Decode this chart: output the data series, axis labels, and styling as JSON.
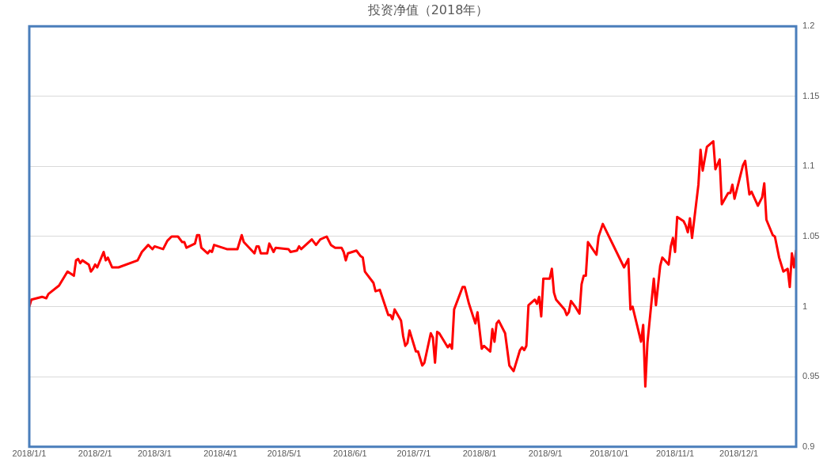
{
  "chart_data": {
    "type": "line",
    "title": "投资净值（2018年）",
    "xlim": [
      "2018-01-01",
      "2018-12-28"
    ],
    "xticks": [
      {
        "value": "2018-01-01",
        "label": "2018/1/1"
      },
      {
        "value": "2018-02-01",
        "label": "2018/2/1"
      },
      {
        "value": "2018-03-01",
        "label": "2018/3/1"
      },
      {
        "value": "2018-04-01",
        "label": "2018/4/1"
      },
      {
        "value": "2018-05-01",
        "label": "2018/5/1"
      },
      {
        "value": "2018-06-01",
        "label": "2018/6/1"
      },
      {
        "value": "2018-07-01",
        "label": "2018/7/1"
      },
      {
        "value": "2018-08-01",
        "label": "2018/8/1"
      },
      {
        "value": "2018-09-01",
        "label": "2018/9/1"
      },
      {
        "value": "2018-10-01",
        "label": "2018/10/1"
      },
      {
        "value": "2018-11-01",
        "label": "2018/11/1"
      },
      {
        "value": "2018-12-01",
        "label": "2018/12/1"
      }
    ],
    "ylim": [
      0.9,
      1.2
    ],
    "yticks": [
      0.9,
      0.95,
      1,
      1.05,
      1.1,
      1.15,
      1.2
    ],
    "grid": "y",
    "legend": false,
    "marker": "none",
    "line_style": "solid",
    "series": [
      {
        "color": "#ff0000",
        "x": [
          "2018-01-01",
          "2018-01-02",
          "2018-01-07",
          "2018-01-09",
          "2018-01-10",
          "2018-01-15",
          "2018-01-19",
          "2018-01-22",
          "2018-01-23",
          "2018-01-24",
          "2018-01-25",
          "2018-01-26",
          "2018-01-29",
          "2018-01-30",
          "2018-01-31",
          "2018-02-01",
          "2018-02-02",
          "2018-02-05",
          "2018-02-06",
          "2018-02-07",
          "2018-02-09",
          "2018-02-12",
          "2018-02-21",
          "2018-02-23",
          "2018-02-26",
          "2018-02-28",
          "2018-03-01",
          "2018-03-05",
          "2018-03-07",
          "2018-03-09",
          "2018-03-12",
          "2018-03-14",
          "2018-03-15",
          "2018-03-16",
          "2018-03-20",
          "2018-03-21",
          "2018-03-22",
          "2018-03-23",
          "2018-03-26",
          "2018-03-27",
          "2018-03-28",
          "2018-03-29",
          "2018-04-02",
          "2018-04-04",
          "2018-04-09",
          "2018-04-11",
          "2018-04-12",
          "2018-04-17",
          "2018-04-18",
          "2018-04-19",
          "2018-04-20",
          "2018-04-23",
          "2018-04-24",
          "2018-04-26",
          "2018-04-27",
          "2018-05-03",
          "2018-05-04",
          "2018-05-07",
          "2018-05-08",
          "2018-05-09",
          "2018-05-14",
          "2018-05-16",
          "2018-05-18",
          "2018-05-21",
          "2018-05-23",
          "2018-05-25",
          "2018-05-28",
          "2018-05-29",
          "2018-05-30",
          "2018-05-31",
          "2018-06-04",
          "2018-06-06",
          "2018-06-07",
          "2018-06-08",
          "2018-06-12",
          "2018-06-13",
          "2018-06-15",
          "2018-06-19",
          "2018-06-20",
          "2018-06-21",
          "2018-06-22",
          "2018-06-25",
          "2018-06-26",
          "2018-06-27",
          "2018-06-28",
          "2018-06-29",
          "2018-07-02",
          "2018-07-03",
          "2018-07-05",
          "2018-07-06",
          "2018-07-09",
          "2018-07-10",
          "2018-07-11",
          "2018-07-12",
          "2018-07-13",
          "2018-07-17",
          "2018-07-18",
          "2018-07-19",
          "2018-07-20",
          "2018-07-24",
          "2018-07-25",
          "2018-07-27",
          "2018-07-30",
          "2018-07-31",
          "2018-08-02",
          "2018-08-03",
          "2018-08-06",
          "2018-08-07",
          "2018-08-08",
          "2018-08-09",
          "2018-08-10",
          "2018-08-13",
          "2018-08-15",
          "2018-08-17",
          "2018-08-20",
          "2018-08-21",
          "2018-08-22",
          "2018-08-23",
          "2018-08-24",
          "2018-08-27",
          "2018-08-28",
          "2018-08-29",
          "2018-08-30",
          "2018-08-31",
          "2018-09-03",
          "2018-09-04",
          "2018-09-05",
          "2018-09-06",
          "2018-09-10",
          "2018-09-11",
          "2018-09-12",
          "2018-09-13",
          "2018-09-15",
          "2018-09-17",
          "2018-09-18",
          "2018-09-19",
          "2018-09-20",
          "2018-09-21",
          "2018-09-25",
          "2018-09-26",
          "2018-09-28",
          "2018-10-08",
          "2018-10-10",
          "2018-10-11",
          "2018-10-12",
          "2018-10-16",
          "2018-10-17",
          "2018-10-18",
          "2018-10-19",
          "2018-10-22",
          "2018-10-23",
          "2018-10-25",
          "2018-10-26",
          "2018-10-29",
          "2018-10-30",
          "2018-10-31",
          "2018-11-01",
          "2018-11-02",
          "2018-11-05",
          "2018-11-06",
          "2018-11-07",
          "2018-11-08",
          "2018-11-09",
          "2018-11-12",
          "2018-11-13",
          "2018-11-14",
          "2018-11-16",
          "2018-11-19",
          "2018-11-20",
          "2018-11-22",
          "2018-11-23",
          "2018-11-26",
          "2018-11-27",
          "2018-11-28",
          "2018-11-29",
          "2018-12-03",
          "2018-12-04",
          "2018-12-06",
          "2018-12-07",
          "2018-12-10",
          "2018-12-12",
          "2018-12-13",
          "2018-12-14",
          "2018-12-17",
          "2018-12-18",
          "2018-12-20",
          "2018-12-22",
          "2018-12-24",
          "2018-12-25",
          "2018-12-26",
          "2018-12-27",
          "2018-12-28"
        ],
        "values": [
          1.0,
          1.005,
          1.007,
          1.006,
          1.009,
          1.015,
          1.025,
          1.022,
          1.033,
          1.034,
          1.031,
          1.033,
          1.03,
          1.025,
          1.027,
          1.03,
          1.028,
          1.039,
          1.033,
          1.035,
          1.028,
          1.028,
          1.033,
          1.039,
          1.044,
          1.041,
          1.043,
          1.041,
          1.047,
          1.05,
          1.05,
          1.046,
          1.046,
          1.042,
          1.045,
          1.051,
          1.051,
          1.042,
          1.038,
          1.04,
          1.039,
          1.044,
          1.042,
          1.041,
          1.041,
          1.051,
          1.046,
          1.038,
          1.043,
          1.043,
          1.038,
          1.038,
          1.045,
          1.039,
          1.042,
          1.041,
          1.039,
          1.04,
          1.043,
          1.041,
          1.048,
          1.044,
          1.048,
          1.05,
          1.044,
          1.042,
          1.042,
          1.039,
          1.033,
          1.038,
          1.04,
          1.036,
          1.035,
          1.025,
          1.017,
          1.011,
          1.012,
          0.994,
          0.994,
          0.991,
          0.998,
          0.99,
          0.979,
          0.972,
          0.974,
          0.983,
          0.968,
          0.968,
          0.958,
          0.96,
          0.981,
          0.978,
          0.96,
          0.982,
          0.981,
          0.971,
          0.973,
          0.97,
          0.998,
          1.014,
          1.014,
          1.002,
          0.988,
          0.996,
          0.97,
          0.972,
          0.968,
          0.984,
          0.975,
          0.988,
          0.99,
          0.981,
          0.958,
          0.954,
          0.969,
          0.971,
          0.969,
          0.972,
          1.001,
          1.005,
          1.002,
          1.007,
          0.993,
          1.02,
          1.02,
          1.027,
          1.01,
          1.005,
          0.998,
          0.994,
          0.996,
          1.004,
          1.0,
          0.995,
          1.016,
          1.022,
          1.022,
          1.046,
          1.037,
          1.05,
          1.059,
          1.028,
          1.034,
          0.998,
          1.0,
          0.975,
          0.987,
          0.943,
          0.974,
          1.02,
          1.001,
          1.029,
          1.035,
          1.03,
          1.043,
          1.049,
          1.039,
          1.064,
          1.061,
          1.058,
          1.053,
          1.063,
          1.049,
          1.087,
          1.112,
          1.097,
          1.114,
          1.118,
          1.098,
          1.105,
          1.073,
          1.081,
          1.081,
          1.087,
          1.077,
          1.101,
          1.104,
          1.08,
          1.082,
          1.072,
          1.078,
          1.088,
          1.062,
          1.051,
          1.05,
          1.035,
          1.025,
          1.027,
          1.014,
          1.038,
          1.028,
          1.04
        ]
      }
    ]
  }
}
